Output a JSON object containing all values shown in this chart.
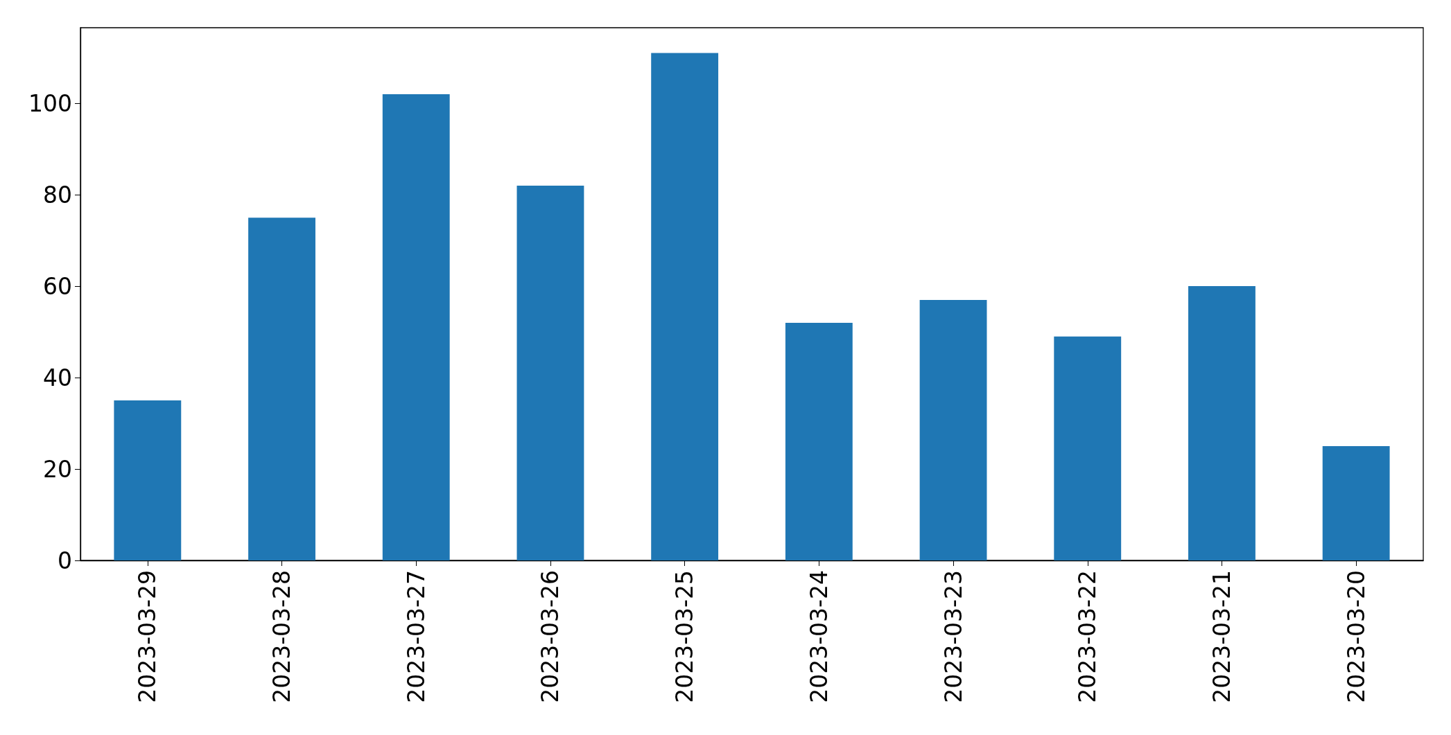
{
  "chart_data": {
    "type": "bar",
    "categories": [
      "2023-03-29",
      "2023-03-28",
      "2023-03-27",
      "2023-03-26",
      "2023-03-25",
      "2023-03-24",
      "2023-03-23",
      "2023-03-22",
      "2023-03-21",
      "2023-03-20"
    ],
    "values": [
      35,
      75,
      102,
      82,
      111,
      52,
      57,
      49,
      60,
      25
    ],
    "color": "#1f77b4",
    "ylim": [
      0,
      116.55
    ],
    "yticks": [
      0,
      20,
      40,
      60,
      80,
      100
    ],
    "grid": false
  }
}
